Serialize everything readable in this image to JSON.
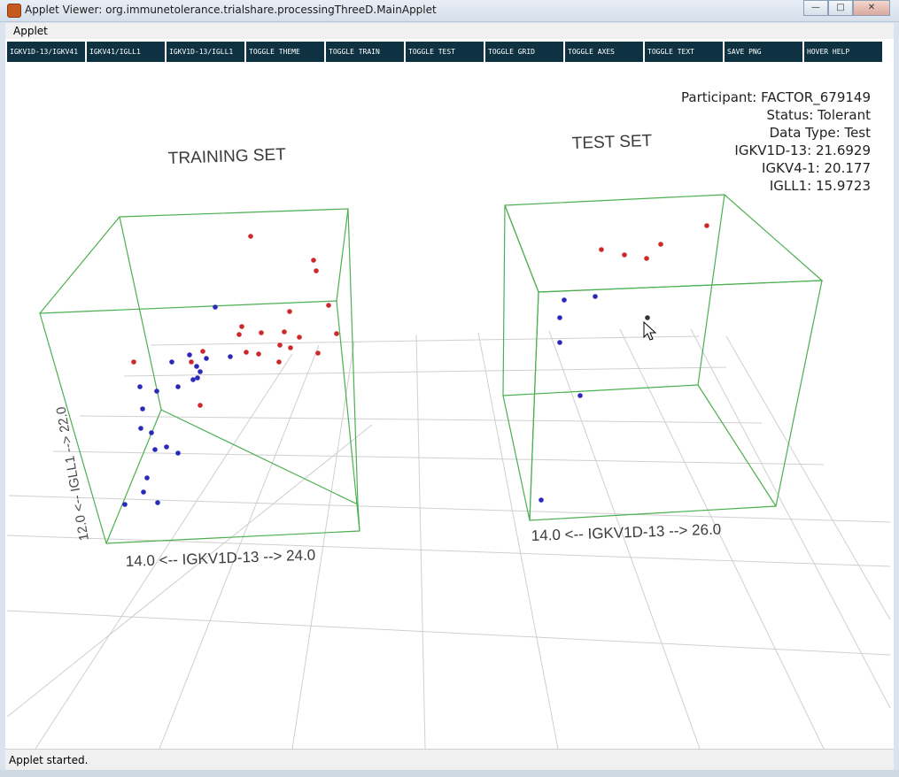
{
  "window": {
    "title": "Applet Viewer: org.immunetolerance.trialshare.processingThreeD.MainApplet",
    "minimize_glyph": "—",
    "maximize_glyph": "□",
    "close_glyph": "✕"
  },
  "menu": {
    "applet_label": "Applet"
  },
  "toolbar": {
    "buttons": [
      "IGKV1D-13/IGKV41",
      "IGKV41/IGLL1",
      "IGKV1D-13/IGLL1",
      "TOGGLE THEME",
      "TOGGLE TRAIN",
      "TOGGLE TEST",
      "TOGGLE GRID",
      "TOGGLE AXES",
      "TOGGLE TEXT",
      "SAVE PNG",
      "HOVER HELP"
    ]
  },
  "info_panel": {
    "participant": "Participant: FACTOR_679149",
    "status": "Status: Tolerant",
    "data_type": "Data Type: Test",
    "igkv1d13": "IGKV1D-13: 21.6929",
    "igkv41": "IGKV4-1: 20.177",
    "igll1": "IGLL1: 15.9723"
  },
  "plots": {
    "training": {
      "title": "TRAINING SET",
      "x_axis_label": "14.0 <-- IGKV1D-13 --> 24.0",
      "z_axis_label": "12.0 <-- IGLL1 --> 22.0"
    },
    "test": {
      "title": "TEST SET",
      "x_axis_label": "14.0 <-- IGKV1D-13 --> 26.0"
    }
  },
  "colors": {
    "tolerant": "#cc2a2a",
    "non_tolerant": "#2a2ab8",
    "selected": "#333333",
    "box": "#4caf50",
    "grid": "#c8c8c8",
    "toolbar": "#0e3242"
  },
  "status_bar": {
    "text": "Applet started."
  }
}
